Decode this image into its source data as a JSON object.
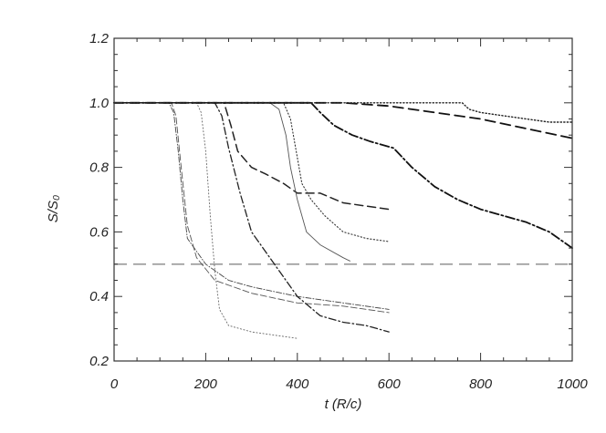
{
  "chart_data": {
    "type": "line",
    "xlabel": "t (R/c)",
    "ylabel": "S/S₀",
    "xlim": [
      0,
      1000
    ],
    "ylim": [
      0.2,
      1.2
    ],
    "xticks": [
      0,
      200,
      400,
      600,
      800,
      1000
    ],
    "yticks": [
      0.2,
      0.4,
      0.6,
      0.8,
      1.0,
      1.2
    ],
    "xtick_labels": [
      "0",
      "200",
      "400",
      "600",
      "800",
      "1000"
    ],
    "ytick_labels": [
      "0.2",
      "0.4",
      "0.6",
      "0.8",
      "1.0",
      "1.2"
    ],
    "grid": false,
    "reference_line": {
      "y": 0.5,
      "style": "long-dash",
      "color": "#9a9a9a"
    },
    "series": [
      {
        "style": "dot-dash-thin",
        "color": "#444444",
        "width": 0.9,
        "x": [
          0,
          120,
          130,
          140,
          150,
          160,
          200,
          250,
          300,
          400,
          500,
          600
        ],
        "y": [
          1.0,
          1.0,
          0.97,
          0.85,
          0.7,
          0.58,
          0.5,
          0.45,
          0.43,
          0.4,
          0.38,
          0.36
        ]
      },
      {
        "style": "dashed-thin",
        "color": "#555555",
        "width": 0.9,
        "x": [
          0,
          125,
          135,
          145,
          160,
          180,
          220,
          300,
          400,
          500,
          600
        ],
        "y": [
          1.0,
          1.0,
          0.96,
          0.82,
          0.62,
          0.52,
          0.45,
          0.41,
          0.38,
          0.37,
          0.35
        ]
      },
      {
        "style": "dotted",
        "color": "#666666",
        "width": 0.9,
        "x": [
          0,
          180,
          190,
          200,
          210,
          220,
          230,
          250,
          300,
          400
        ],
        "y": [
          1.0,
          1.0,
          0.97,
          0.85,
          0.65,
          0.48,
          0.36,
          0.31,
          0.29,
          0.27
        ]
      },
      {
        "style": "dot-dash",
        "color": "#222222",
        "width": 1.3,
        "x": [
          0,
          220,
          235,
          250,
          275,
          300,
          350,
          400,
          450,
          500,
          550,
          600
        ],
        "y": [
          1.0,
          1.0,
          0.96,
          0.86,
          0.72,
          0.6,
          0.5,
          0.4,
          0.34,
          0.32,
          0.31,
          0.29
        ]
      },
      {
        "style": "dashed",
        "color": "#222222",
        "width": 1.5,
        "x": [
          0,
          240,
          255,
          270,
          300,
          330,
          370,
          400,
          450,
          500,
          600
        ],
        "y": [
          1.0,
          1.0,
          0.93,
          0.85,
          0.8,
          0.78,
          0.75,
          0.72,
          0.72,
          0.69,
          0.67
        ]
      },
      {
        "style": "solid-thin",
        "color": "#555555",
        "width": 0.9,
        "x": [
          0,
          340,
          360,
          375,
          385,
          400,
          420,
          450,
          500,
          515
        ],
        "y": [
          1.0,
          1.0,
          0.98,
          0.9,
          0.8,
          0.7,
          0.6,
          0.56,
          0.52,
          0.51
        ]
      },
      {
        "style": "dotted",
        "color": "#333333",
        "width": 1.1,
        "x": [
          0,
          370,
          385,
          395,
          410,
          430,
          460,
          500,
          550,
          600
        ],
        "y": [
          1.0,
          1.0,
          0.95,
          0.87,
          0.75,
          0.7,
          0.65,
          0.6,
          0.58,
          0.57
        ]
      },
      {
        "style": "dash-dot-heavy",
        "color": "#111111",
        "width": 1.8,
        "x": [
          0,
          430,
          450,
          480,
          520,
          560,
          610,
          650,
          700,
          750,
          800,
          850,
          900,
          950,
          1000
        ],
        "y": [
          1.0,
          1.0,
          0.97,
          0.93,
          0.9,
          0.88,
          0.86,
          0.8,
          0.74,
          0.7,
          0.67,
          0.65,
          0.63,
          0.6,
          0.55
        ]
      },
      {
        "style": "dashed-heavy",
        "color": "#111111",
        "width": 1.8,
        "x": [
          0,
          500,
          600,
          700,
          800,
          900,
          1000
        ],
        "y": [
          1.0,
          1.0,
          0.99,
          0.97,
          0.95,
          0.92,
          0.89
        ]
      },
      {
        "style": "dotted",
        "color": "#222222",
        "width": 1.4,
        "x": [
          0,
          700,
          760,
          775,
          800,
          850,
          900,
          950,
          1000
        ],
        "y": [
          1.0,
          1.0,
          1.0,
          0.98,
          0.97,
          0.96,
          0.95,
          0.94,
          0.94
        ]
      }
    ]
  }
}
